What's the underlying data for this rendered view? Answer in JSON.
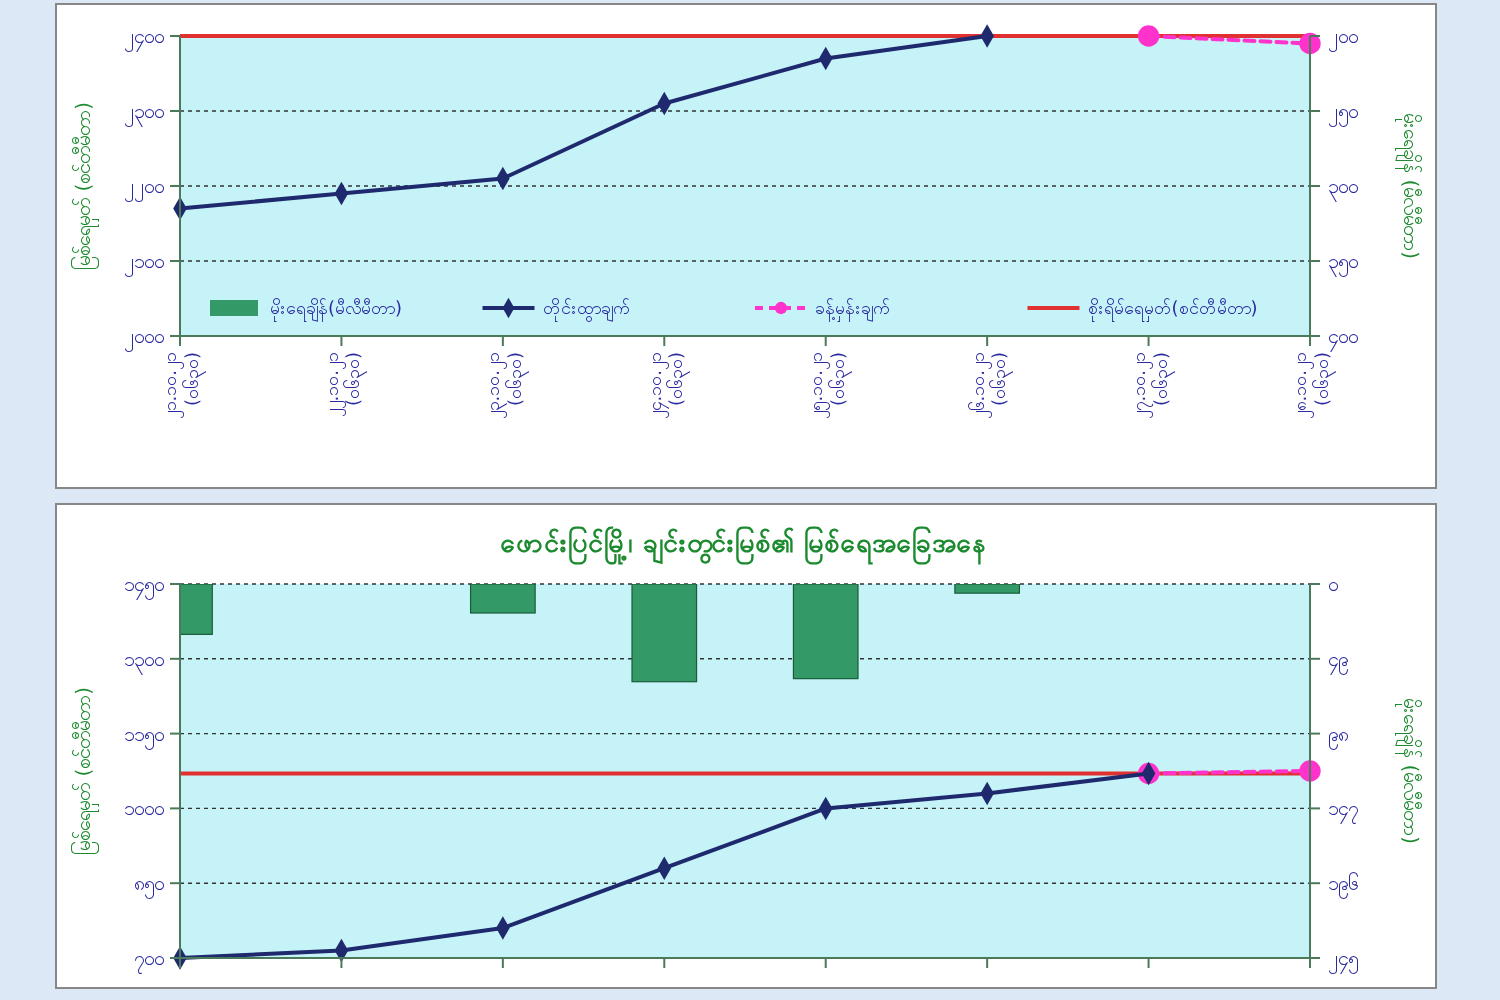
{
  "chart_data": [
    {
      "type": "line",
      "ylabel": "မြစ်ရေမှတ် (စင်တီမီတာ)",
      "y2label": "မိုးရေချိန် (မီလီမီတာ)",
      "categories": [
        "၂၁.၁၀.၂၁\n(၀၆၃၀)",
        "၂၂.၁၀.၂၁\n(၀၆၃၀)",
        "၂၃.၁၀.၂၁\n(၀၆၃၀)",
        "၂၄.၁၀.၂၁\n(၀၆၃၀)",
        "၂၅.၁၀.၂၁\n(၀၆၃၀)",
        "၂၆.၁၀.၂၁\n(၀၆၃၀)",
        "၂၇.၁၀.၂၁\n(၀၆၃၀)",
        "၂၈.၁၀.၂၁\n(၀၆၃၀)"
      ],
      "series": [
        {
          "name": "မိုးရေချိန်(မီလီမီတာ)",
          "type": "bar",
          "axis": "y2",
          "color": "#339966",
          "values": [
            null,
            null,
            null,
            null,
            null,
            null,
            null,
            null
          ]
        },
        {
          "name": "တိုင်းထွာချက်",
          "color": "#1f2a6e",
          "marker": "diamond",
          "line_style": "solid",
          "values": [
            2170,
            2190,
            2210,
            2310,
            2370,
            2400,
            null,
            null
          ]
        },
        {
          "name": "ခန့်မှန်းချက်",
          "color": "#ff33cc",
          "marker": "circle",
          "line_style": "dashed",
          "values": [
            null,
            null,
            null,
            null,
            null,
            null,
            2400,
            2390
          ]
        }
      ],
      "ref_lines": [
        {
          "axis": "y",
          "value": 2400,
          "label": "စိုးရိမ်ရေမှတ်(စင်တီမီတာ)",
          "color": "#e03030"
        }
      ],
      "ylim": [
        2000,
        2400
      ],
      "yticks": [
        {
          "value": 2000,
          "label": "၂၀၀၀"
        },
        {
          "value": 2100,
          "label": "၂၁၀၀"
        },
        {
          "value": 2200,
          "label": "၂၂၀၀"
        },
        {
          "value": 2300,
          "label": "၂၃၀၀"
        },
        {
          "value": 2400,
          "label": "၂၄၀၀"
        }
      ],
      "y2lim": [
        400,
        200
      ],
      "y2ticks": [
        {
          "value": 400,
          "label": "၄၀၀"
        },
        {
          "value": 350,
          "label": "၃၅၀"
        },
        {
          "value": 300,
          "label": "၃၀၀"
        },
        {
          "value": 250,
          "label": "၂၅၀"
        },
        {
          "value": 200,
          "label": "၂၀၀"
        }
      ],
      "grid": "y",
      "legend": "bottom"
    },
    {
      "type": "line",
      "title": "ဖောင်းပြင်မြို့၊ ချင်းတွင်းမြစ်၏ မြစ်ရေအခြေအနေ",
      "ylabel": "မြစ်ရေမှတ် (စင်တီမီတာ)",
      "y2label": "မိုးရေချိန် (မီလီမီတာ)",
      "categories": [
        null,
        null,
        null,
        null,
        null,
        null,
        null,
        null
      ],
      "series": [
        {
          "type": "bar",
          "axis": "y2",
          "color": "#339966",
          "values": [
            33,
            null,
            19,
            64,
            62,
            6,
            null,
            null
          ]
        },
        {
          "color": "#ff33cc",
          "marker": "circle",
          "line_style": "dashed",
          "values": [
            null,
            null,
            null,
            null,
            null,
            null,
            1070,
            1075
          ]
        },
        {
          "color": "#1f2a6e",
          "marker": "diamond",
          "line_style": "solid",
          "values": [
            700,
            715,
            760,
            880,
            1000,
            1030,
            1070,
            null
          ]
        }
      ],
      "ref_lines": [
        {
          "axis": "y",
          "value": 1070,
          "color": "#e03030"
        }
      ],
      "ylim": [
        700,
        1450
      ],
      "yticks": [
        {
          "value": 700,
          "label": "၇၀၀"
        },
        {
          "value": 850,
          "label": "၈၅၀"
        },
        {
          "value": 1000,
          "label": "၁၀၀၀"
        },
        {
          "value": 1150,
          "label": "၁၁၅၀"
        },
        {
          "value": 1300,
          "label": "၁၃၀၀"
        },
        {
          "value": 1450,
          "label": "၁၄၅၀"
        }
      ],
      "y2lim": [
        245,
        0
      ],
      "y2ticks": [
        {
          "value": 245,
          "label": "၂၄၅"
        },
        {
          "value": 196,
          "label": "၁၉၆"
        },
        {
          "value": 147,
          "label": "၁၄၇"
        },
        {
          "value": 98,
          "label": "၉၈"
        },
        {
          "value": 49,
          "label": "၄၉"
        },
        {
          "value": 0,
          "label": "၀"
        }
      ],
      "grid": "y"
    }
  ]
}
